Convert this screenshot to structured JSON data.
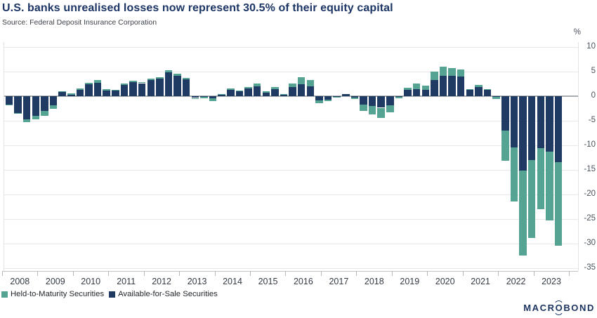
{
  "header": {
    "title": "U.S. banks unrealised losses now represent 30.5% of their equity capital",
    "source": "Source: Federal Deposit Insurance Corporation"
  },
  "logo": {
    "part1": "MACR",
    "o": "O",
    "part2": "BOND"
  },
  "chart_data": {
    "type": "bar",
    "stacked": true,
    "title": "U.S. banks unrealised losses now represent 30.5% of their equity capital",
    "source": "Source: Federal Deposit Insurance Corporation",
    "periods": "quarterly 2008 Q1 - 2023 Q3",
    "highlight_value": "30.5% of equity capital (2023 Q3 total unrealised losses)",
    "y_axis": {
      "unit": "%",
      "range": [
        -35,
        10
      ],
      "ticks": [
        10,
        5,
        0,
        -5,
        -10,
        -15,
        -20,
        -25,
        -30,
        -35
      ],
      "side": "right",
      "grid": true
    },
    "x_axis": {
      "years": [
        "2008",
        "2009",
        "2010",
        "2011",
        "2012",
        "2013",
        "2014",
        "2015",
        "2016",
        "2017",
        "2018",
        "2019",
        "2020",
        "2021",
        "2022",
        "2023"
      ],
      "quarters_per_year": 4,
      "last_year_quarters": 3
    },
    "legend_position": "bottom-left",
    "series": [
      {
        "id": "htm",
        "name": "Held-to-Maturity Securities",
        "color": "#55a392",
        "values": [
          -0.1,
          -0.1,
          -0.6,
          -0.6,
          -1.0,
          -0.7,
          0.1,
          0.2,
          0.3,
          0.3,
          0.5,
          0.25,
          0.15,
          0.3,
          0.25,
          0.25,
          0.3,
          0.35,
          0.5,
          0.5,
          0.35,
          -0.05,
          -0.2,
          -0.55,
          0.15,
          0.25,
          0.15,
          0.35,
          0.6,
          0.25,
          0.35,
          0.15,
          0.8,
          1.4,
          1.4,
          -0.6,
          -0.4,
          -0.05,
          0.0,
          -0.3,
          -1.2,
          -1.6,
          -2.1,
          -1.4,
          -0.25,
          0.4,
          1.2,
          0.85,
          1.8,
          1.9,
          1.6,
          1.45,
          0.05,
          0.5,
          0.05,
          -0.5,
          -6.2,
          -11.0,
          -17.3,
          -15.9,
          -12.5,
          -14.0,
          -17.0
        ]
      },
      {
        "id": "afs",
        "name": "Available-for-Sale Securities",
        "color": "#1f3a63",
        "values": [
          -1.7,
          -3.5,
          -4.7,
          -4.1,
          -3.1,
          -1.9,
          0.8,
          0.3,
          1.2,
          2.4,
          2.7,
          1.1,
          1.1,
          2.2,
          2.85,
          2.6,
          3.2,
          3.5,
          4.75,
          4.1,
          3.35,
          -0.4,
          -0.25,
          -0.5,
          0.25,
          1.3,
          0.95,
          1.5,
          2.0,
          0.7,
          1.4,
          0.3,
          1.8,
          2.4,
          1.9,
          -0.9,
          -0.7,
          -0.15,
          0.4,
          -0.3,
          -1.8,
          -2.1,
          -2.4,
          -1.9,
          -0.15,
          1.3,
          1.4,
          1.2,
          3.2,
          4.1,
          4.1,
          3.9,
          1.3,
          1.75,
          1.3,
          -0.15,
          -7.0,
          -10.5,
          -15.2,
          -13.0,
          -10.6,
          -11.3,
          -13.5
        ]
      }
    ]
  }
}
